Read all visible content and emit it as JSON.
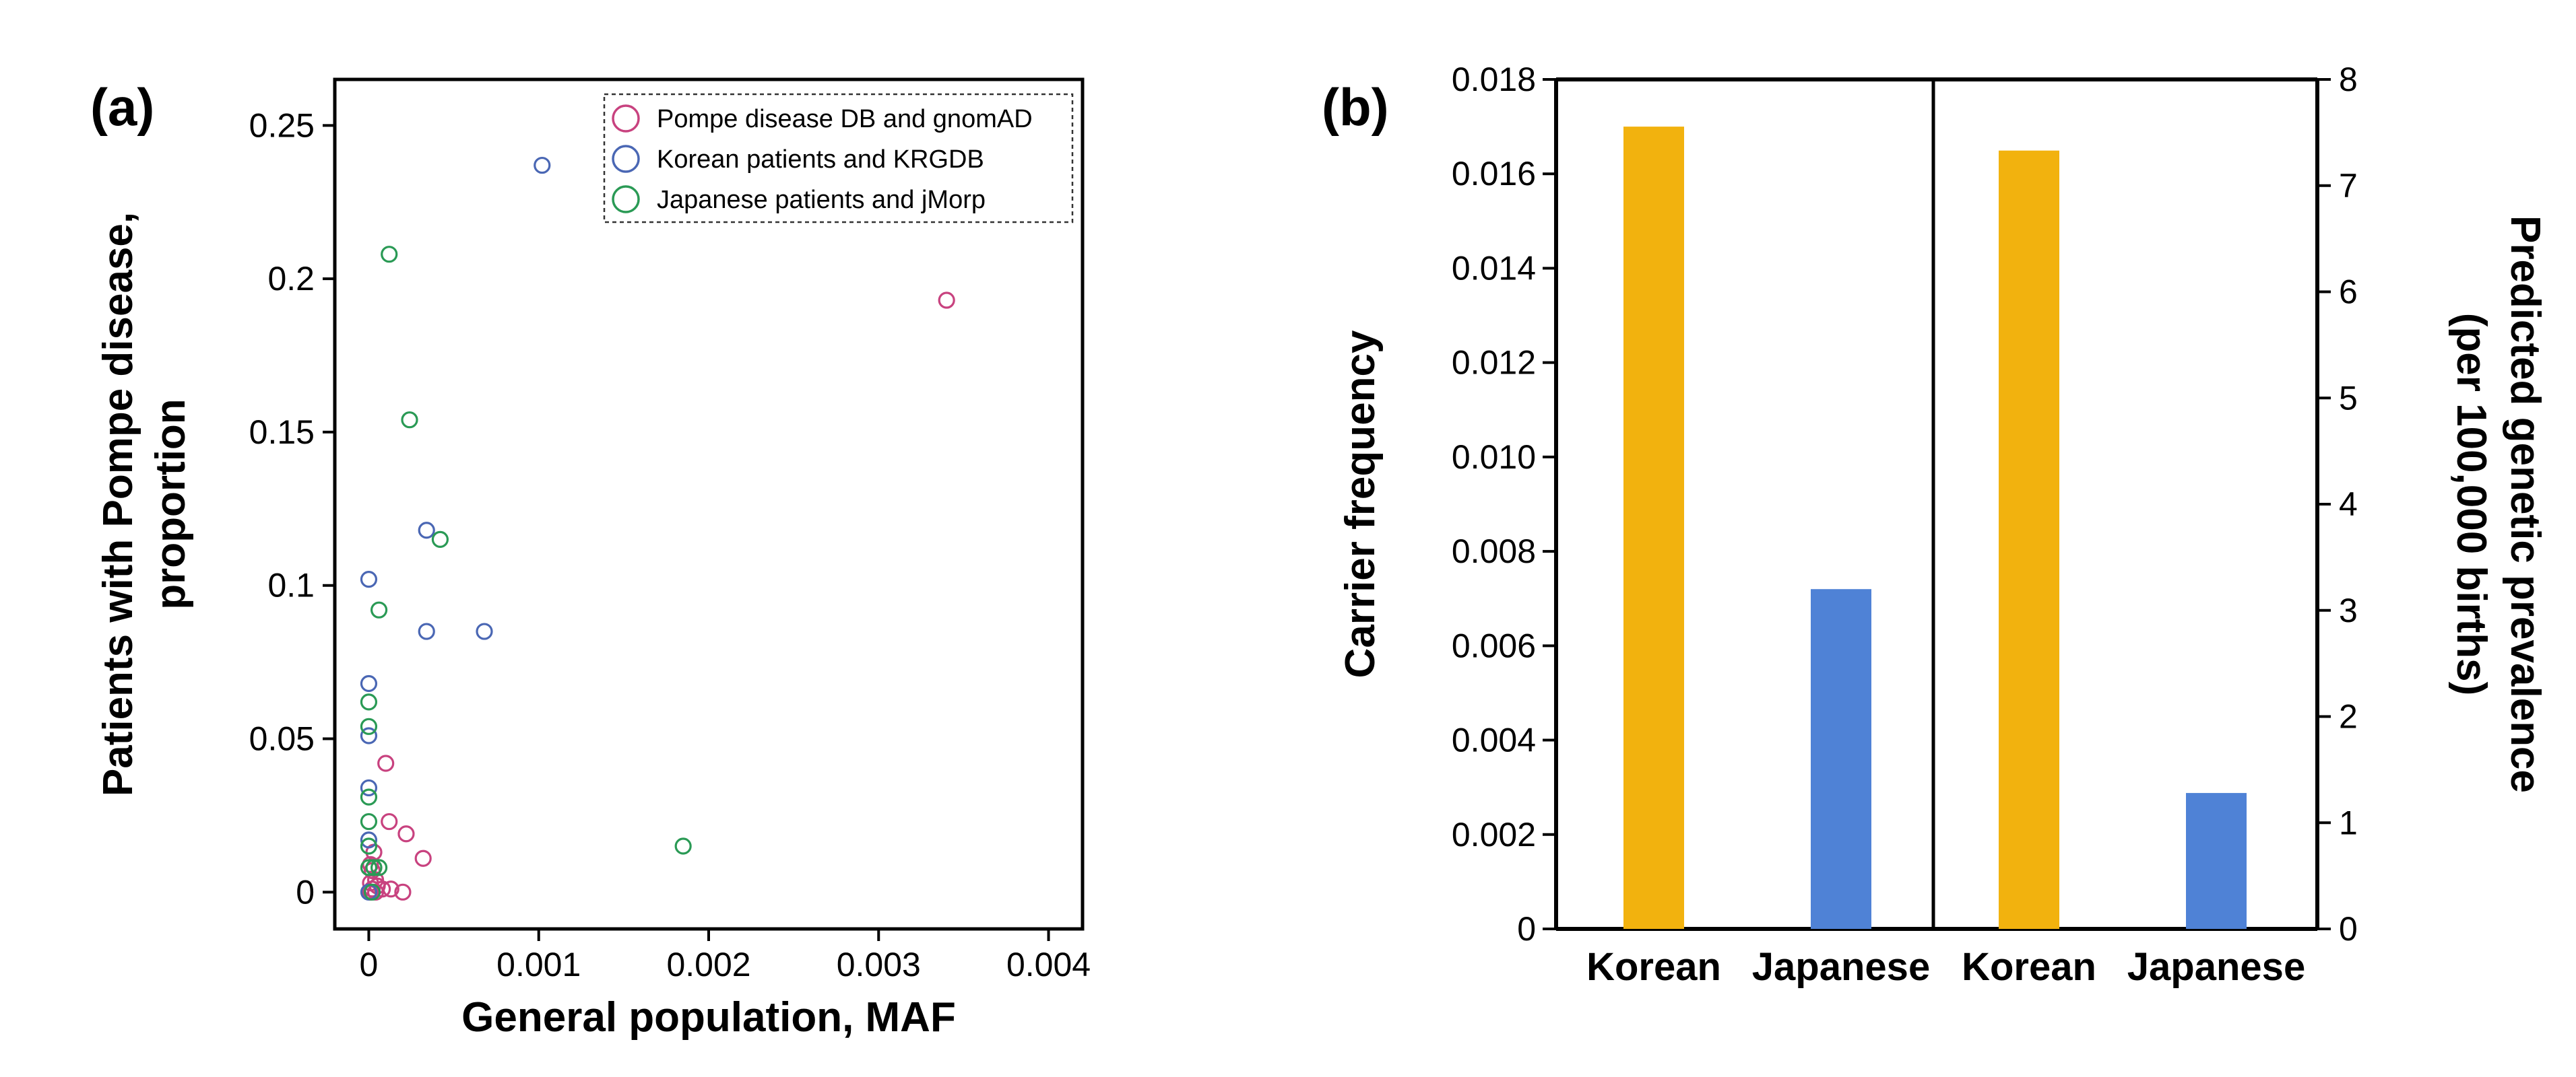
{
  "chart_data": [
    {
      "panel": "(a)",
      "type": "scatter",
      "xlabel": "General population, MAF",
      "ylabel": "Patients with Pompe disease, proportion",
      "ylabel_lines": [
        "Patients with Pompe disease,",
        "proportion"
      ],
      "xlim": [
        -0.0002,
        0.0042
      ],
      "ylim": [
        -0.012,
        0.265
      ],
      "xticks": [
        0,
        0.001,
        0.002,
        0.003,
        0.004
      ],
      "xtick_labels": [
        "0",
        "0.001",
        "0.002",
        "0.003",
        "0.004"
      ],
      "yticks": [
        0,
        0.05,
        0.1,
        0.15,
        0.2,
        0.25
      ],
      "ytick_labels": [
        "0",
        "0.05",
        "0.1",
        "0.15",
        "0.2",
        "0.25"
      ],
      "legend_position": "top-right",
      "series": [
        {
          "name": "Pompe disease DB and gnomAD",
          "color": "#c8427f",
          "marker": "open-circle",
          "points": [
            [
              0.0034,
              0.193
            ],
            [
              0.0001,
              0.042
            ],
            [
              0.00012,
              0.023
            ],
            [
              0.00022,
              0.019
            ],
            [
              0.00032,
              0.011
            ],
            [
              3e-05,
              0.013
            ],
            [
              1e-05,
              0.009
            ],
            [
              2e-05,
              0.007
            ],
            [
              4e-05,
              0.004
            ],
            [
              1e-05,
              0.003
            ],
            [
              5e-05,
              0.002
            ],
            [
              2e-05,
              0.001
            ],
            [
              8e-05,
              0.001
            ],
            [
              0.00013,
              0.001
            ],
            [
              0.0002,
              0.0
            ],
            [
              1e-05,
              0.0
            ],
            [
              4e-05,
              0.0
            ]
          ]
        },
        {
          "name": "Korean patients and KRGDB",
          "color": "#4a67b4",
          "marker": "open-circle",
          "points": [
            [
              0.00102,
              0.237
            ],
            [
              0.00034,
              0.118
            ],
            [
              0.0,
              0.102
            ],
            [
              0.00034,
              0.085
            ],
            [
              0.00068,
              0.085
            ],
            [
              0.0,
              0.068
            ],
            [
              0.0,
              0.051
            ],
            [
              0.0,
              0.034
            ],
            [
              0.0,
              0.017
            ],
            [
              0.0,
              0.0
            ]
          ]
        },
        {
          "name": "Japanese patients and jMorp",
          "color": "#2a9a55",
          "marker": "open-circle",
          "points": [
            [
              0.00012,
              0.208
            ],
            [
              0.00024,
              0.154
            ],
            [
              0.00042,
              0.115
            ],
            [
              6e-05,
              0.092
            ],
            [
              0.0,
              0.062
            ],
            [
              0.0,
              0.054
            ],
            [
              0.0,
              0.031
            ],
            [
              0.0,
              0.023
            ],
            [
              0.0,
              0.015
            ],
            [
              0.00185,
              0.015
            ],
            [
              3e-05,
              0.008
            ],
            [
              6e-05,
              0.008
            ],
            [
              0.0,
              0.008
            ],
            [
              2e-05,
              0.0
            ]
          ]
        }
      ]
    },
    {
      "panel": "(b)",
      "type": "bar",
      "ylabel": "Carrier frequency",
      "y2label_lines": [
        "Predicted genetic prevalence",
        "(per 100,000 births)"
      ],
      "ylim": [
        0,
        0.018
      ],
      "yticks": [
        0,
        0.002,
        0.004,
        0.006,
        0.008,
        0.01,
        0.012,
        0.014,
        0.016,
        0.018
      ],
      "ytick_labels": [
        "0",
        "0.002",
        "0.004",
        "0.006",
        "0.008",
        "0.010",
        "0.012",
        "0.014",
        "0.016",
        "0.018"
      ],
      "y2lim": [
        0,
        8
      ],
      "y2ticks": [
        0,
        1,
        2,
        3,
        4,
        5,
        6,
        7,
        8
      ],
      "y2tick_labels": [
        "0",
        "1",
        "2",
        "3",
        "4",
        "5",
        "6",
        "7",
        "8"
      ],
      "groups": [
        {
          "measure": "Carrier frequency",
          "axis": "left",
          "categories": [
            "Korean",
            "Japanese"
          ],
          "values": [
            0.017,
            0.0072
          ]
        },
        {
          "measure": "Predicted genetic prevalence (per 100,000 births)",
          "axis": "right",
          "categories": [
            "Korean",
            "Japanese"
          ],
          "values": [
            7.33,
            1.28
          ]
        }
      ],
      "colors": {
        "Korean": "#f2b20e",
        "Japanese": "#4f82d6"
      }
    }
  ]
}
